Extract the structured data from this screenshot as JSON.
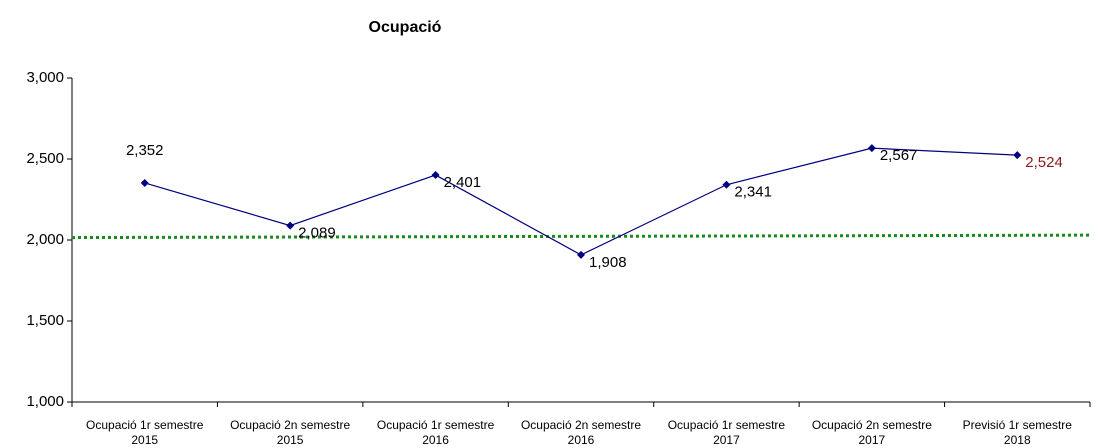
{
  "chart_data": {
    "type": "line",
    "title": "Ocupació",
    "categories": [
      "Ocupació 1r semestre 2015",
      "Ocupació 2n semestre 2015",
      "Ocupació 1r semestre 2016",
      "Ocupació 2n semestre 2016",
      "Ocupació 1r semestre 2017",
      "Ocupació 2n semestre 2017",
      "Previsió 1r semestre 2018"
    ],
    "series": [
      {
        "color": "#000080",
        "values": [
          2352,
          2089,
          2401,
          1908,
          2341,
          2567,
          2524
        ],
        "value_labels": [
          "2,352",
          "2,089",
          "2,401",
          "1,908",
          "2,341",
          "2,567",
          "2,524"
        ],
        "value_label_colors": [
          "#000000",
          "#000000",
          "#000000",
          "#000000",
          "#000000",
          "#000000",
          "#8b1a1a"
        ]
      }
    ],
    "reference_line": {
      "values": [
        2015,
        2030
      ],
      "color": "#1a8a1a",
      "style": "dotted"
    },
    "ylim": [
      1000,
      3000
    ],
    "yticks": [
      {
        "value": 1000,
        "label": "1,000"
      },
      {
        "value": 1500,
        "label": "1,500"
      },
      {
        "value": 2000,
        "label": "2,000"
      },
      {
        "value": 2500,
        "label": "2,500"
      },
      {
        "value": 3000,
        "label": "3,000"
      }
    ]
  }
}
